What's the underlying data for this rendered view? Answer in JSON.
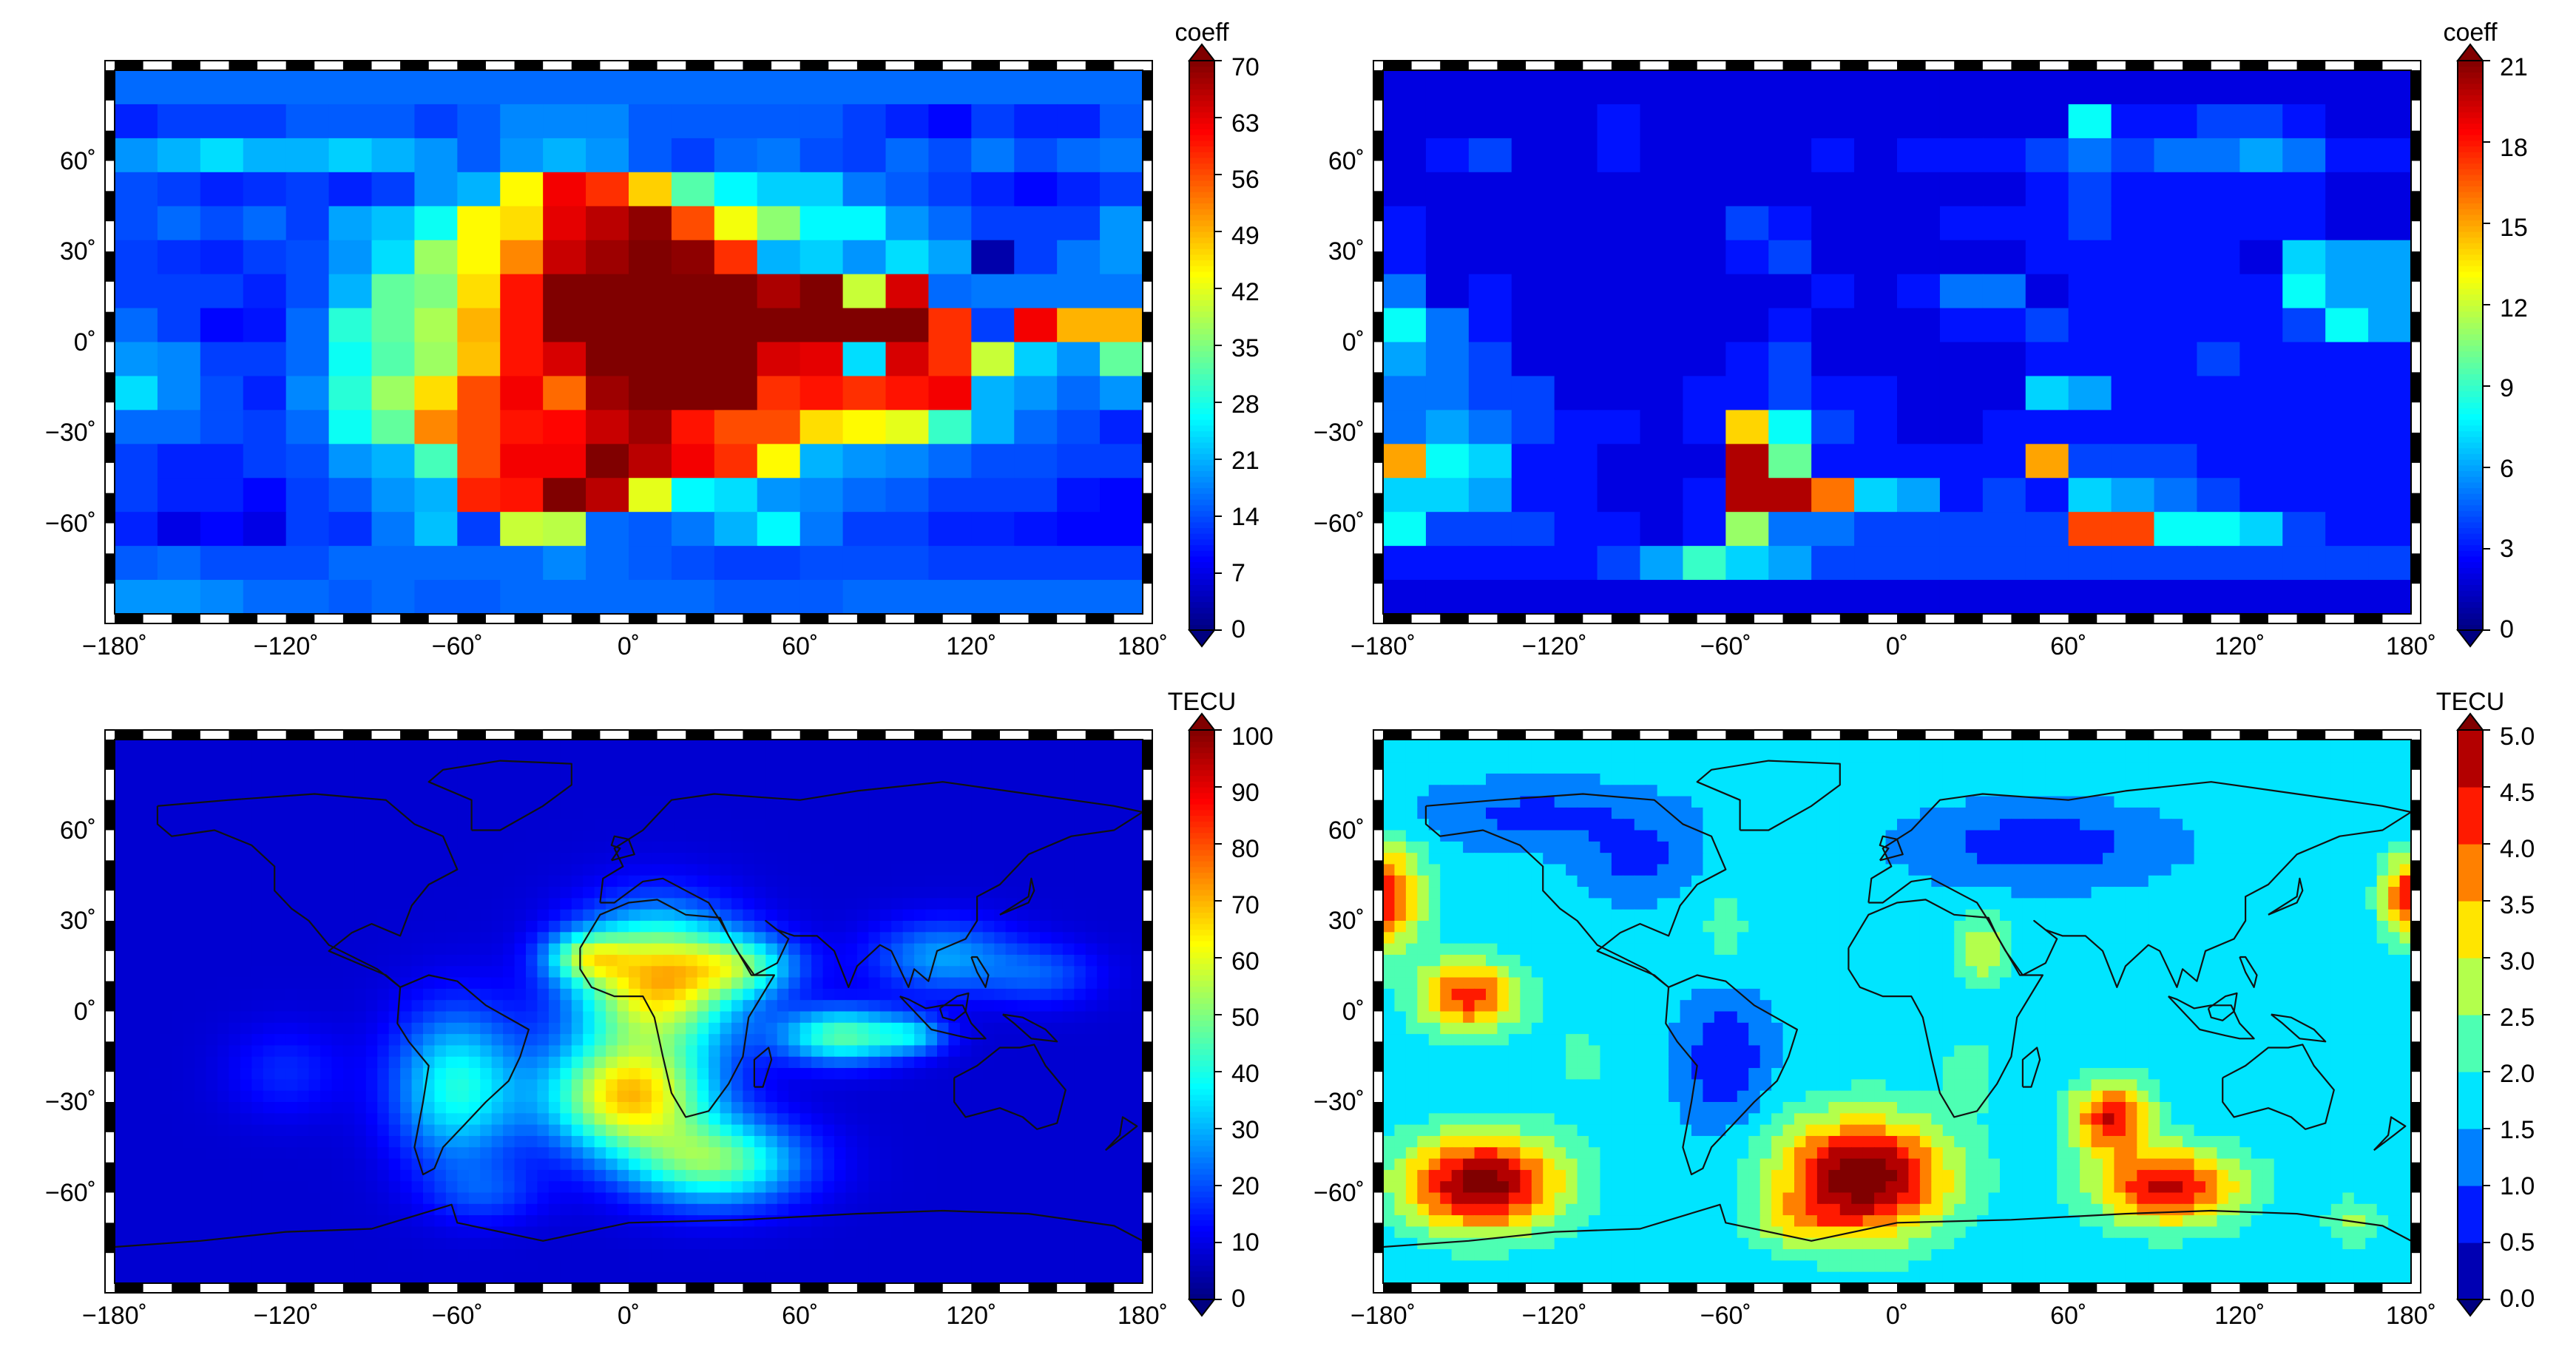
{
  "chart_data": [
    {
      "type": "heatmap",
      "panel": "top-left",
      "colorbar": {
        "label": "coeff",
        "min": 0,
        "max": 70,
        "ticks": [
          "0",
          "7",
          "14",
          "21",
          "28",
          "35",
          "42",
          "49",
          "56",
          "63",
          "70"
        ]
      },
      "x_ticks": [
        "−180˚",
        "−120˚",
        "−60˚",
        "0˚",
        "60˚",
        "120˚",
        "180˚"
      ],
      "y_ticks": [
        "60˚",
        "30˚",
        "0˚",
        "−30˚",
        "−60˚"
      ],
      "xlim": [
        -180,
        180
      ],
      "ylim": [
        -90,
        90
      ],
      "grid_lon_step": 15,
      "grid_lat_step": 10,
      "rows_north_to_south": [
        [
          16,
          16,
          16,
          16,
          16,
          16,
          16,
          16,
          16,
          16,
          16,
          16,
          16,
          16,
          16,
          16,
          16,
          16,
          16,
          16,
          16,
          16,
          16,
          16
        ],
        [
          11,
          13,
          13,
          13,
          15,
          15,
          15,
          13,
          15,
          18,
          18,
          18,
          15,
          15,
          15,
          15,
          15,
          13,
          11,
          9,
          13,
          11,
          11,
          15
        ],
        [
          19,
          21,
          24,
          21,
          21,
          23,
          21,
          19,
          15,
          19,
          21,
          19,
          15,
          13,
          16,
          17,
          14,
          13,
          16,
          14,
          17,
          14,
          16,
          17
        ],
        [
          14,
          13,
          11,
          12,
          13,
          11,
          13,
          19,
          21,
          44,
          62,
          58,
          47,
          32,
          26,
          23,
          23,
          17,
          15,
          13,
          11,
          9,
          11,
          13
        ],
        [
          14,
          16,
          14,
          16,
          13,
          20,
          22,
          27,
          44,
          46,
          63,
          66,
          69,
          56,
          43,
          36,
          26,
          26,
          19,
          16,
          13,
          13,
          13,
          19
        ],
        [
          13,
          12,
          11,
          13,
          14,
          19,
          24,
          37,
          44,
          52,
          65,
          68,
          70,
          69,
          58,
          21,
          23,
          19,
          24,
          20,
          3,
          13,
          17,
          19
        ],
        [
          13,
          13,
          13,
          11,
          14,
          21,
          33,
          35,
          46,
          60,
          70,
          70,
          70,
          70,
          70,
          67,
          70,
          40,
          64,
          16,
          17,
          17,
          17,
          17
        ],
        [
          16,
          13,
          9,
          10,
          16,
          29,
          33,
          38,
          49,
          60,
          70,
          70,
          70,
          70,
          70,
          70,
          70,
          70,
          70,
          58,
          13,
          62,
          49,
          49
        ],
        [
          19,
          18,
          13,
          13,
          16,
          27,
          32,
          37,
          48,
          60,
          64,
          70,
          70,
          70,
          70,
          64,
          63,
          24,
          64,
          58,
          40,
          23,
          19,
          33
        ],
        [
          24,
          18,
          14,
          11,
          18,
          29,
          37,
          46,
          56,
          62,
          54,
          68,
          70,
          70,
          70,
          58,
          60,
          58,
          60,
          62,
          21,
          19,
          16,
          19
        ],
        [
          16,
          16,
          14,
          13,
          16,
          27,
          33,
          52,
          56,
          60,
          61,
          65,
          68,
          60,
          56,
          56,
          46,
          44,
          42,
          30,
          21,
          16,
          14,
          11
        ],
        [
          13,
          11,
          11,
          13,
          14,
          19,
          21,
          31,
          56,
          62,
          62,
          70,
          66,
          62,
          58,
          44,
          21,
          19,
          18,
          16,
          14,
          14,
          13,
          13
        ],
        [
          13,
          11,
          11,
          9,
          13,
          15,
          19,
          21,
          59,
          60,
          70,
          66,
          42,
          26,
          24,
          19,
          18,
          16,
          15,
          13,
          13,
          13,
          10,
          9
        ],
        [
          11,
          7,
          9,
          7,
          13,
          12,
          17,
          22,
          13,
          40,
          39,
          16,
          15,
          17,
          21,
          26,
          17,
          13,
          13,
          11,
          11,
          10,
          9,
          9
        ],
        [
          15,
          16,
          14,
          14,
          14,
          16,
          16,
          16,
          16,
          16,
          18,
          16,
          15,
          14,
          13,
          13,
          14,
          14,
          14,
          13,
          13,
          13,
          13,
          13
        ],
        [
          19,
          19,
          18,
          16,
          16,
          15,
          16,
          15,
          15,
          16,
          16,
          16,
          16,
          16,
          15,
          15,
          15,
          16,
          16,
          16,
          16,
          16,
          16,
          16
        ]
      ]
    },
    {
      "type": "heatmap",
      "panel": "top-right",
      "colorbar": {
        "label": "coeff",
        "min": 0,
        "max": 21,
        "ticks": [
          "0",
          "3",
          "6",
          "9",
          "12",
          "15",
          "18",
          "21"
        ]
      },
      "x_ticks": [
        "−180˚",
        "−120˚",
        "−60˚",
        "0˚",
        "60˚",
        "120˚",
        "180˚"
      ],
      "y_ticks": [
        "60˚",
        "30˚",
        "0˚",
        "−30˚",
        "−60˚"
      ],
      "xlim": [
        -180,
        180
      ],
      "ylim": [
        -90,
        90
      ],
      "grid_lon_step": 15,
      "grid_lat_step": 10,
      "rows_north_to_south": [
        [
          2,
          2,
          2,
          2,
          2,
          2,
          2,
          2,
          2,
          2,
          2,
          2,
          2,
          2,
          2,
          2,
          2,
          2,
          2,
          2,
          2,
          2,
          2,
          2
        ],
        [
          2,
          2,
          2,
          2,
          2,
          3,
          2,
          2,
          2,
          2,
          2,
          2,
          2,
          2,
          2,
          2,
          8,
          3,
          3,
          4,
          4,
          3,
          2,
          2
        ],
        [
          2,
          3,
          4,
          2,
          2,
          3,
          2,
          2,
          2,
          2,
          3,
          2,
          3,
          3,
          3,
          4,
          5,
          4,
          5,
          5,
          6,
          5,
          3,
          3
        ],
        [
          2,
          2,
          2,
          2,
          2,
          2,
          2,
          2,
          2,
          2,
          2,
          2,
          2,
          2,
          2,
          3,
          4,
          3,
          3,
          3,
          3,
          3,
          2,
          2
        ],
        [
          3,
          2,
          2,
          2,
          2,
          2,
          2,
          2,
          4,
          3,
          2,
          2,
          2,
          3,
          3,
          3,
          4,
          3,
          3,
          3,
          3,
          3,
          2,
          2
        ],
        [
          3,
          2,
          2,
          2,
          2,
          2,
          2,
          2,
          3,
          4,
          2,
          2,
          2,
          2,
          2,
          3,
          3,
          3,
          3,
          3,
          2,
          7,
          6,
          6
        ],
        [
          5,
          2,
          3,
          2,
          2,
          2,
          2,
          2,
          2,
          2,
          3,
          2,
          3,
          5,
          5,
          2,
          3,
          3,
          3,
          3,
          3,
          8,
          6,
          6
        ],
        [
          8,
          5,
          3,
          2,
          2,
          2,
          2,
          2,
          2,
          3,
          2,
          2,
          2,
          3,
          3,
          4,
          3,
          3,
          3,
          3,
          3,
          4,
          8,
          6
        ],
        [
          6,
          5,
          4,
          2,
          2,
          2,
          2,
          2,
          3,
          4,
          2,
          2,
          2,
          2,
          2,
          3,
          3,
          3,
          3,
          4,
          3,
          3,
          3,
          3
        ],
        [
          5,
          5,
          4,
          4,
          2,
          2,
          2,
          3,
          3,
          4,
          3,
          3,
          2,
          2,
          2,
          7,
          6,
          3,
          3,
          3,
          3,
          3,
          3,
          3
        ],
        [
          5,
          6,
          5,
          4,
          3,
          3,
          2,
          3,
          14,
          8,
          4,
          3,
          2,
          2,
          3,
          3,
          3,
          3,
          3,
          3,
          3,
          3,
          3,
          3
        ],
        [
          15,
          8,
          7,
          3,
          3,
          2,
          2,
          2,
          20,
          10,
          3,
          3,
          3,
          3,
          3,
          15,
          4,
          4,
          4,
          3,
          3,
          3,
          3,
          3
        ],
        [
          7,
          7,
          6,
          3,
          3,
          2,
          2,
          3,
          20,
          20,
          16,
          7,
          6,
          3,
          4,
          3,
          7,
          6,
          5,
          4,
          3,
          3,
          3,
          3
        ],
        [
          8,
          4,
          4,
          4,
          3,
          3,
          2,
          3,
          11,
          5,
          5,
          4,
          4,
          4,
          4,
          4,
          17,
          17,
          8,
          8,
          7,
          4,
          3,
          3
        ],
        [
          3,
          3,
          3,
          3,
          3,
          4,
          6,
          9,
          7,
          6,
          4,
          4,
          4,
          4,
          4,
          4,
          4,
          4,
          4,
          4,
          4,
          4,
          4,
          4
        ],
        [
          2,
          2,
          2,
          2,
          2,
          2,
          2,
          2,
          2,
          2,
          2,
          2,
          2,
          2,
          2,
          2,
          2,
          2,
          2,
          2,
          2,
          2,
          2,
          2
        ]
      ]
    },
    {
      "type": "heatmap",
      "panel": "bottom-left",
      "colorbar": {
        "label": "TECU",
        "min": 0,
        "max": 100,
        "ticks": [
          "0",
          "10",
          "20",
          "30",
          "40",
          "50",
          "60",
          "70",
          "80",
          "90",
          "100"
        ]
      },
      "x_ticks": [
        "−180˚",
        "−120˚",
        "−60˚",
        "0˚",
        "60˚",
        "120˚",
        "180˚"
      ],
      "y_ticks": [
        "60˚",
        "30˚",
        "0˚",
        "−30˚",
        "−60˚"
      ],
      "xlim": [
        -180,
        180
      ],
      "ylim": [
        -90,
        90
      ],
      "rendering": "smooth-with-coastlines",
      "blobs_lon_lat_sigma_value": [
        [
          10,
          10,
          28,
          22,
          60
        ],
        [
          0,
          -28,
          28,
          18,
          58
        ],
        [
          30,
          -50,
          30,
          14,
          40
        ],
        [
          -60,
          -25,
          22,
          25,
          32
        ],
        [
          -15,
          18,
          14,
          8,
          30
        ],
        [
          40,
          15,
          20,
          10,
          28
        ],
        [
          75,
          -8,
          22,
          9,
          38
        ],
        [
          100,
          -8,
          12,
          6,
          18
        ],
        [
          110,
          18,
          25,
          12,
          20
        ],
        [
          145,
          12,
          20,
          10,
          12
        ],
        [
          -50,
          -60,
          20,
          10,
          10
        ],
        [
          -120,
          -20,
          20,
          15,
          8
        ]
      ],
      "baseline": 8
    },
    {
      "type": "heatmap",
      "panel": "bottom-right",
      "colorbar": {
        "label": "TECU",
        "min": 0.0,
        "max": 5.0,
        "ticks": [
          "0.0",
          "0.5",
          "1.0",
          "1.5",
          "2.0",
          "2.5",
          "3.0",
          "3.5",
          "4.0",
          "4.5",
          "5.0"
        ]
      },
      "x_ticks": [
        "−180˚",
        "−120˚",
        "−60˚",
        "0˚",
        "60˚",
        "120˚",
        "180˚"
      ],
      "y_ticks": [
        "60˚",
        "30˚",
        "0˚",
        "−30˚",
        "−60˚"
      ],
      "xlim": [
        -180,
        180
      ],
      "ylim": [
        -90,
        90
      ],
      "rendering": "contour-filled-with-coastlines",
      "blobs_lon_lat_sigma_value": [
        [
          -145,
          -57,
          28,
          16,
          3.6
        ],
        [
          -150,
          5,
          18,
          12,
          2.6
        ],
        [
          -180,
          38,
          14,
          18,
          2.8
        ],
        [
          180,
          38,
          10,
          14,
          2.8
        ],
        [
          -12,
          -55,
          30,
          20,
          3.8
        ],
        [
          25,
          -20,
          10,
          14,
          0.6
        ],
        [
          75,
          -35,
          14,
          12,
          2.8
        ],
        [
          95,
          -58,
          26,
          13,
          3.0
        ],
        [
          160,
          -70,
          10,
          8,
          1.0
        ],
        [
          -110,
          -15,
          16,
          20,
          0.4
        ],
        [
          -35,
          -70,
          15,
          8,
          0.8
        ],
        [
          -60,
          25,
          12,
          25,
          0.5
        ],
        [
          30,
          20,
          10,
          12,
          1.3
        ]
      ],
      "negative_blobs": [
        [
          -60,
          -15,
          14,
          22,
          1.2
        ],
        [
          -90,
          50,
          20,
          12,
          0.8
        ],
        [
          50,
          55,
          40,
          12,
          1.0
        ],
        [
          -125,
          65,
          40,
          10,
          0.8
        ]
      ],
      "baseline": 1.65
    }
  ]
}
